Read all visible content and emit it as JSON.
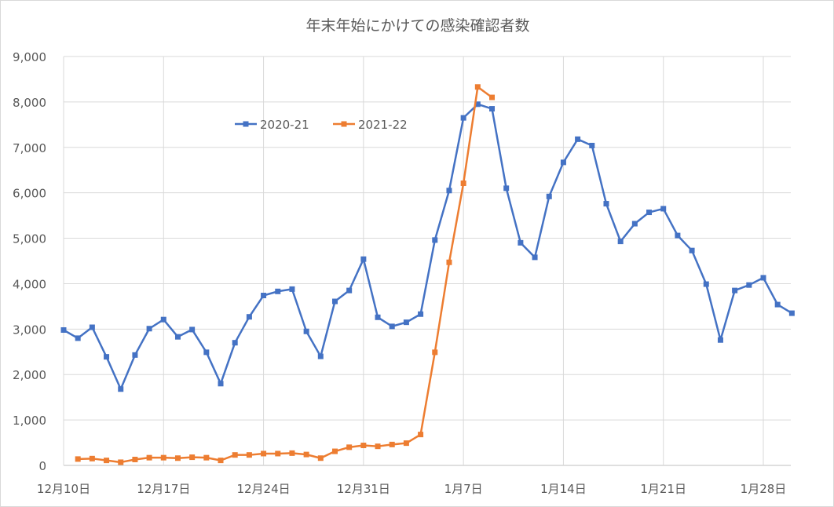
{
  "chart_data": {
    "type": "line",
    "title": "年末年始にかけての感染確認者数",
    "xlabel": "",
    "ylabel": "",
    "ylim": [
      0,
      9000
    ],
    "yticks": [
      0,
      1000,
      2000,
      3000,
      4000,
      5000,
      6000,
      7000,
      8000,
      9000
    ],
    "ytick_labels": [
      "0",
      "1,000",
      "2,000",
      "3,000",
      "4,000",
      "5,000",
      "6,000",
      "7,000",
      "8,000",
      "9,000"
    ],
    "x_start": "12月10日",
    "xtick_labels": [
      "12月10日",
      "12月17日",
      "12月24日",
      "12月31日",
      "1月7日",
      "1月14日",
      "1月21日",
      "1月28日"
    ],
    "xtick_day_index": [
      0,
      7,
      14,
      21,
      28,
      35,
      42,
      49
    ],
    "x_days_range": [
      0,
      51
    ],
    "grid": true,
    "legend_position": "top-left-inside",
    "series": [
      {
        "name": "2020-21",
        "color": "#4472C4",
        "start_day_index": 0,
        "values": [
          2980,
          2800,
          3040,
          2390,
          1680,
          2430,
          3010,
          3210,
          2830,
          2990,
          2490,
          1800,
          2700,
          3270,
          3740,
          3830,
          3880,
          2950,
          2400,
          3610,
          3850,
          4540,
          3260,
          3060,
          3150,
          3330,
          4960,
          6050,
          7650,
          7950,
          7850,
          6100,
          4900,
          4580,
          5920,
          6670,
          7180,
          7040,
          5760,
          4930,
          5320,
          5570,
          5650,
          5060,
          4730,
          3990,
          2760,
          3850,
          3970,
          4130,
          3540,
          3350
        ]
      },
      {
        "name": "2021-22",
        "color": "#ED7D31",
        "start_day_index": 1,
        "values": [
          140,
          150,
          110,
          70,
          130,
          170,
          170,
          160,
          180,
          170,
          110,
          230,
          230,
          260,
          260,
          270,
          240,
          160,
          310,
          400,
          440,
          420,
          460,
          490,
          680,
          2490,
          4470,
          6210,
          8330,
          8100
        ]
      }
    ]
  }
}
